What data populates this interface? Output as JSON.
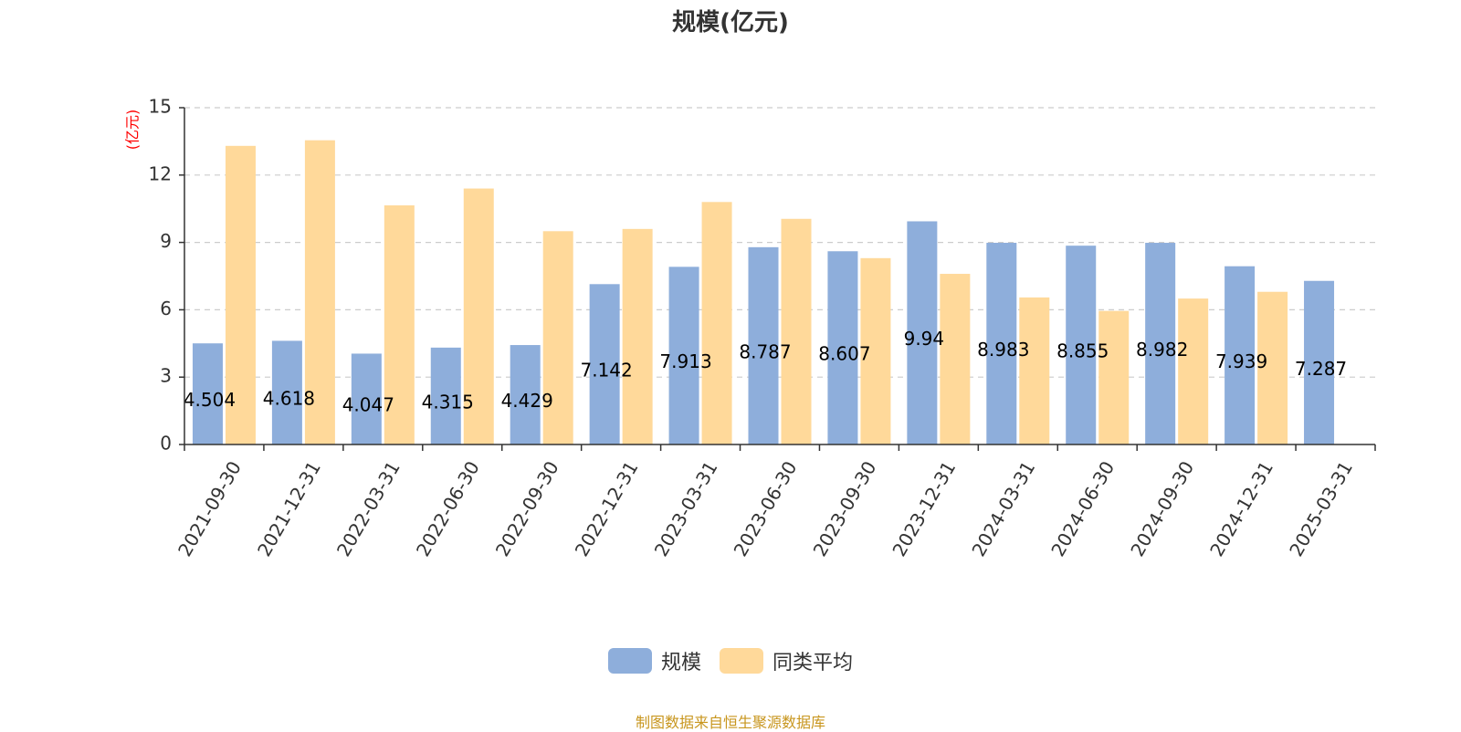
{
  "chart_data": {
    "type": "bar",
    "title": "规模(亿元)",
    "ylabel": "(亿元)",
    "ylim": [
      0,
      15
    ],
    "yticks": [
      0,
      3,
      6,
      9,
      12,
      15
    ],
    "grid": true,
    "legend_position": "bottom",
    "categories": [
      "2021-09-30",
      "2021-12-31",
      "2022-03-31",
      "2022-06-30",
      "2022-09-30",
      "2022-12-31",
      "2023-03-31",
      "2023-06-30",
      "2023-09-30",
      "2023-12-31",
      "2024-03-31",
      "2024-06-30",
      "2024-09-30",
      "2024-12-31",
      "2025-03-31"
    ],
    "series": [
      {
        "name": "规模",
        "color": "#8eaedb",
        "values": [
          4.504,
          4.618,
          4.047,
          4.315,
          4.429,
          7.142,
          7.913,
          8.787,
          8.607,
          9.94,
          8.983,
          8.855,
          8.982,
          7.939,
          7.287
        ],
        "labels": [
          "4.504",
          "4.618",
          "4.047",
          "4.315",
          "4.429",
          "7.142",
          "7.913",
          "8.787",
          "8.607",
          "9.94",
          "8.983",
          "8.855",
          "8.982",
          "7.939",
          "7.287"
        ]
      },
      {
        "name": "同类平均",
        "color": "#ffd99a",
        "values": [
          13.3,
          13.55,
          10.65,
          11.4,
          9.5,
          9.6,
          10.8,
          10.05,
          8.3,
          7.6,
          6.55,
          5.95,
          6.5,
          6.8,
          null
        ]
      }
    ]
  },
  "source_note": "制图数据来自恒生聚源数据库"
}
